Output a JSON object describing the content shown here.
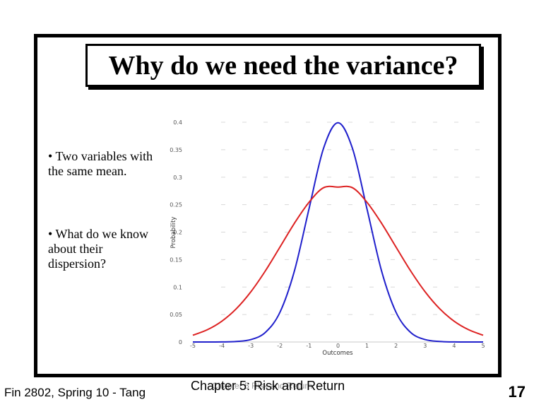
{
  "slide": {
    "title": "Why do we need the variance?",
    "bullets": [
      "• Two variables with the same mean.",
      "• What do we know about their dispersion?"
    ],
    "footer_left": "Fin 2802, Spring 10 - Tang",
    "footer_center": "Chapter 5: Risk and Return",
    "footer_ghost": "Chapter 5 Risk and Return",
    "slide_number": "17"
  },
  "chart_data": {
    "type": "line",
    "xlabel": "Outcomes",
    "ylabel": "Probability",
    "xlim": [
      -5,
      5
    ],
    "ylim": [
      0,
      0.4
    ],
    "x_ticks": [
      -5,
      -4,
      -3,
      -2,
      -1,
      0,
      1,
      2,
      3,
      4,
      5
    ],
    "y_ticks": [
      0,
      0.05,
      0.1,
      0.15,
      0.2,
      0.25,
      0.3,
      0.35,
      0.4
    ],
    "y_tick_labels": [
      "0",
      "0.05",
      "0.1",
      "0.15",
      "0.2",
      "0.25",
      "0.3",
      "0.35",
      "0.4"
    ],
    "series": [
      {
        "color": "#2020cc",
        "x": [
          -5,
          -4.5,
          -4,
          -3.5,
          -3,
          -2.5,
          -2,
          -1.5,
          -1,
          -0.5,
          0,
          0.5,
          1,
          1.5,
          2,
          2.5,
          3,
          3.5,
          4,
          4.5,
          5
        ],
        "y": [
          0.0,
          0.0,
          0.0001,
          0.0009,
          0.0044,
          0.0175,
          0.054,
          0.1295,
          0.242,
          0.3521,
          0.399,
          0.3521,
          0.242,
          0.1295,
          0.054,
          0.0175,
          0.0044,
          0.0009,
          0.0001,
          0.0,
          0.0
        ]
      },
      {
        "color": "#dd2222",
        "x": [
          -5,
          -4.5,
          -4,
          -3.5,
          -3,
          -2.5,
          -2,
          -1.5,
          -1,
          -0.5,
          0,
          0.5,
          1,
          1.5,
          2,
          2.5,
          3,
          3.5,
          4,
          4.5,
          5
        ],
        "y": [
          0.0123,
          0.0223,
          0.0379,
          0.0607,
          0.0915,
          0.1296,
          0.1727,
          0.2162,
          0.2542,
          0.2808,
          0.282,
          0.2808,
          0.2542,
          0.2162,
          0.1727,
          0.1296,
          0.0915,
          0.0607,
          0.0379,
          0.0223,
          0.0123
        ]
      }
    ]
  }
}
